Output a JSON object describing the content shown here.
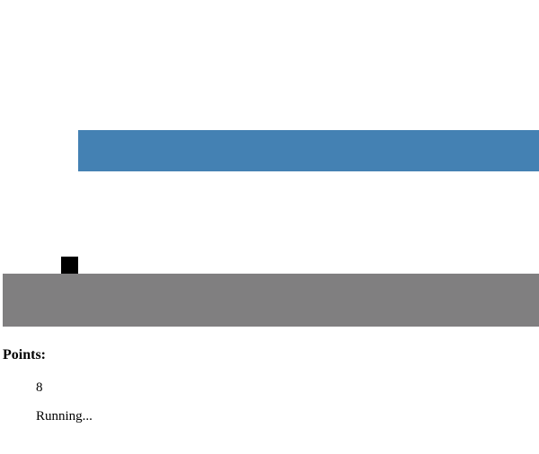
{
  "game": {
    "obstacle_color": "#4481b3",
    "player_color": "#000000",
    "ground_color": "#807f80"
  },
  "score": {
    "label": "Points:",
    "value": "8"
  },
  "status": {
    "text": "Running..."
  }
}
